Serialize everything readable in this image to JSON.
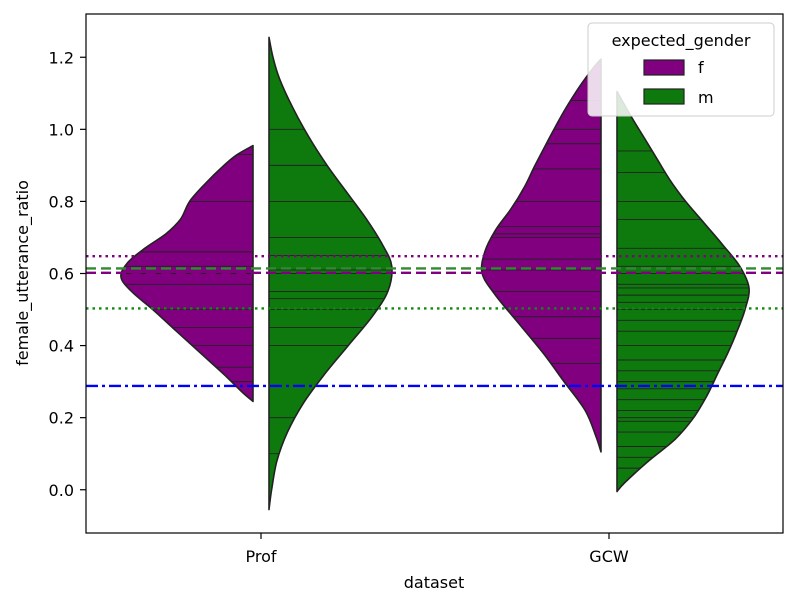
{
  "chart_data": {
    "type": "violin",
    "split": true,
    "inner": "stick",
    "xlabel": "dataset",
    "ylabel": "female_utterance_ratio",
    "categories": [
      "Prof",
      "GCW"
    ],
    "ylim": [
      -0.12,
      1.32
    ],
    "yticks": [
      0.0,
      0.2,
      0.4,
      0.6,
      0.8,
      1.0,
      1.2
    ],
    "ytick_labels": [
      "0.0",
      "0.2",
      "0.4",
      "0.6",
      "0.8",
      "1.0",
      "1.2"
    ],
    "legend": {
      "title": "expected_gender",
      "position": "top-right",
      "entries": [
        {
          "label": "f",
          "color": "#800080"
        },
        {
          "label": "m",
          "color": "#0e7a0e"
        }
      ]
    },
    "series": [
      {
        "name": "f",
        "side": "left",
        "color": "#800080",
        "violins": [
          {
            "category": "Prof",
            "range": [
              0.245,
              0.955
            ],
            "density": [
              [
                0.245,
                0.0
              ],
              [
                0.27,
                0.08
              ],
              [
                0.32,
                0.22
              ],
              [
                0.38,
                0.4
              ],
              [
                0.44,
                0.58
              ],
              [
                0.5,
                0.76
              ],
              [
                0.55,
                0.92
              ],
              [
                0.59,
                1.0
              ],
              [
                0.63,
                0.95
              ],
              [
                0.67,
                0.82
              ],
              [
                0.71,
                0.66
              ],
              [
                0.75,
                0.55
              ],
              [
                0.8,
                0.48
              ],
              [
                0.85,
                0.36
              ],
              [
                0.9,
                0.22
              ],
              [
                0.93,
                0.12
              ],
              [
                0.955,
                0.0
              ]
            ],
            "sticks": [
              0.3,
              0.34,
              0.4,
              0.45,
              0.5,
              0.57,
              0.6,
              0.62,
              0.66,
              0.8,
              0.93
            ]
          },
          {
            "category": "GCW",
            "range": [
              0.105,
              1.195
            ],
            "density": [
              [
                0.105,
                0.0
              ],
              [
                0.15,
                0.04
              ],
              [
                0.22,
                0.12
              ],
              [
                0.3,
                0.28
              ],
              [
                0.38,
                0.44
              ],
              [
                0.46,
                0.62
              ],
              [
                0.54,
                0.8
              ],
              [
                0.6,
                0.9
              ],
              [
                0.66,
                0.88
              ],
              [
                0.72,
                0.8
              ],
              [
                0.78,
                0.68
              ],
              [
                0.84,
                0.58
              ],
              [
                0.9,
                0.5
              ],
              [
                0.97,
                0.4
              ],
              [
                1.05,
                0.28
              ],
              [
                1.12,
                0.16
              ],
              [
                1.17,
                0.06
              ],
              [
                1.195,
                0.0
              ]
            ],
            "sticks": [
              0.35,
              0.42,
              0.48,
              0.55,
              0.61,
              0.64,
              0.7,
              0.71,
              0.73,
              0.8,
              0.89,
              0.96,
              1.0,
              1.08
            ]
          }
        ]
      },
      {
        "name": "m",
        "side": "right",
        "color": "#0e7a0e",
        "violins": [
          {
            "category": "Prof",
            "range": [
              -0.055,
              1.255
            ],
            "density": [
              [
                -0.055,
                0.0
              ],
              [
                0.0,
                0.02
              ],
              [
                0.08,
                0.06
              ],
              [
                0.16,
                0.14
              ],
              [
                0.24,
                0.26
              ],
              [
                0.32,
                0.42
              ],
              [
                0.4,
                0.6
              ],
              [
                0.48,
                0.78
              ],
              [
                0.55,
                0.9
              ],
              [
                0.62,
                0.93
              ],
              [
                0.68,
                0.86
              ],
              [
                0.75,
                0.74
              ],
              [
                0.82,
                0.6
              ],
              [
                0.9,
                0.44
              ],
              [
                0.98,
                0.3
              ],
              [
                1.06,
                0.18
              ],
              [
                1.14,
                0.08
              ],
              [
                1.2,
                0.03
              ],
              [
                1.255,
                0.0
              ]
            ],
            "sticks": [
              0.1,
              0.2,
              0.4,
              0.45,
              0.5,
              0.53,
              0.55,
              0.6,
              0.61,
              0.65,
              0.7,
              0.8,
              0.9,
              1.0
            ]
          },
          {
            "category": "GCW",
            "range": [
              -0.005,
              1.105
            ],
            "density": [
              [
                -0.005,
                0.0
              ],
              [
                0.02,
                0.06
              ],
              [
                0.08,
                0.24
              ],
              [
                0.14,
                0.44
              ],
              [
                0.2,
                0.58
              ],
              [
                0.26,
                0.68
              ],
              [
                0.32,
                0.76
              ],
              [
                0.38,
                0.84
              ],
              [
                0.44,
                0.91
              ],
              [
                0.5,
                0.97
              ],
              [
                0.56,
                1.0
              ],
              [
                0.62,
                0.93
              ],
              [
                0.68,
                0.8
              ],
              [
                0.74,
                0.66
              ],
              [
                0.8,
                0.52
              ],
              [
                0.86,
                0.4
              ],
              [
                0.92,
                0.3
              ],
              [
                0.98,
                0.2
              ],
              [
                1.04,
                0.1
              ],
              [
                1.105,
                0.0
              ]
            ],
            "sticks": [
              0.06,
              0.09,
              0.12,
              0.16,
              0.19,
              0.2,
              0.22,
              0.25,
              0.28,
              0.3,
              0.33,
              0.36,
              0.4,
              0.44,
              0.47,
              0.5,
              0.52,
              0.54,
              0.56,
              0.57,
              0.6,
              0.62,
              0.67,
              0.75,
              0.8,
              0.88,
              0.94
            ]
          }
        ]
      }
    ],
    "reference_lines": [
      {
        "y": 0.648,
        "color": "#800080",
        "style": "dotted"
      },
      {
        "y": 0.602,
        "color": "#800080",
        "style": "dashed"
      },
      {
        "y": 0.614,
        "color": "#2e8b2e",
        "style": "dashed"
      },
      {
        "y": 0.503,
        "color": "#0e8a0e",
        "style": "dotted"
      },
      {
        "y": 0.288,
        "color": "#0000ff",
        "style": "dashdot"
      }
    ]
  }
}
